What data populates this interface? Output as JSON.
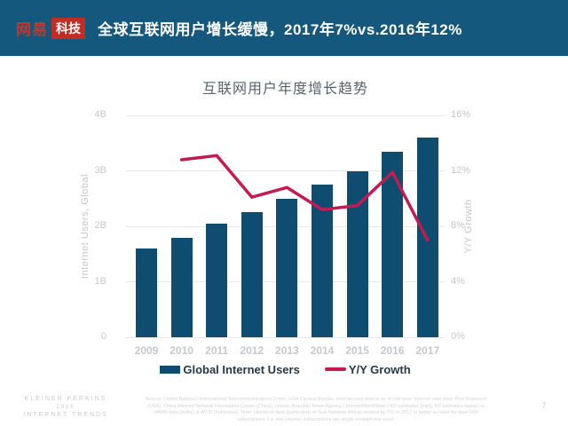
{
  "header": {
    "logo_netease": "网易",
    "logo_tech": "科技",
    "title": "全球互联网用户增长缓慢，2017年7%vs.2016年12%"
  },
  "chart_data": {
    "type": "bar",
    "title": "互联网用户年度增长趋势",
    "categories": [
      "2009",
      "2010",
      "2011",
      "2012",
      "2013",
      "2014",
      "2015",
      "2016",
      "2017"
    ],
    "series": [
      {
        "name": "Global Internet Users",
        "type": "bar",
        "axis": "left",
        "values": [
          1.6,
          1.8,
          2.05,
          2.25,
          2.5,
          2.75,
          3.0,
          3.35,
          3.6
        ]
      },
      {
        "name": "Y/Y Growth",
        "type": "line",
        "axis": "right",
        "values": [
          null,
          12.8,
          13.1,
          10.1,
          10.8,
          9.2,
          9.5,
          11.9,
          7.0
        ]
      }
    ],
    "left_axis": {
      "label": "Internet Users, Global",
      "ticks": [
        "0",
        "1B",
        "2B",
        "3B",
        "4B"
      ],
      "min": 0,
      "max": 4
    },
    "right_axis": {
      "label": "Y/Y Growth",
      "ticks": [
        "0%",
        "4%",
        "8%",
        "12%",
        "16%"
      ],
      "min": 0,
      "max": 16
    },
    "legend": [
      {
        "label": "Global Internet Users",
        "swatch": "bar"
      },
      {
        "label": "Y/Y Growth",
        "swatch": "line"
      }
    ],
    "grid": true,
    "colors": {
      "bar": "#0E4C70",
      "line": "#C41A50",
      "header_bg": "#15587E",
      "logo_red": "#C22D23"
    }
  },
  "footer": {
    "brand_lines": [
      "KLEINER PERKINS",
      "2018",
      "INTERNET TRENDS"
    ],
    "source": "Source: United Nations / International Telecommunications Union, USA Census Bureau. Internet user data is as of mid-year. Internet user data: Pew Research (USA), China Internet Network Information Center (China), Islamic Republic News Agency / InternetWorldStats / KP estimates (Iran), KP estimates based on IAMAI data (India), & APJII (Indonesia). Note: Historical data (particularly in Sub-Saharan Africa) revised by ITU in 2017 to better account for dual-SIM subscriptions (i.e. two Internet subscriptions per single smartphone user).",
    "page_number": "7"
  }
}
